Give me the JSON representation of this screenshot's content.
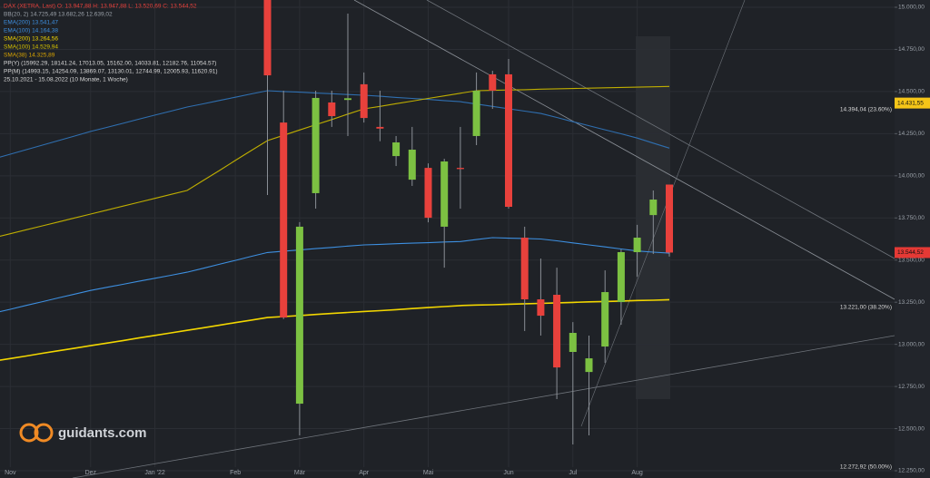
{
  "chart_data": {
    "type": "candlestick",
    "legend": [
      {
        "text": "DAX (XETRA, Last)  O: 13.947,88  H: 13.947,88  L: 13.520,69  C: 13.544,52",
        "color": "#e8413c"
      },
      {
        "text": "BB(20, 2)  14.725,49  13.682,26  12.639,02",
        "color": "#9aa0a8"
      },
      {
        "text": "EMA(200)  13.541,47",
        "color": "#3d8fe0"
      },
      {
        "text": "EMA(100)  14.164,38",
        "color": "#3d8fe0"
      },
      {
        "text": "SMA(200)  13.264,56",
        "color": "#f2d600"
      },
      {
        "text": "SMA(100)  14.529,94",
        "color": "#d6c200"
      },
      {
        "text": "SMA(38)  14.325,89",
        "color": "#d9a400"
      },
      {
        "text": "PP(Y)  (15992.29, 18141.24, 17013.05, 15162.00, 14033.81, 12182.76, 11054.57)",
        "color": "#d8d8d8"
      },
      {
        "text": "PP(M)  (14993.15, 14254.09, 13869.07, 13130.01, 12744.99, 12005.93, 11620.91)",
        "color": "#d8d8d8"
      },
      {
        "text": "25.10.2021 - 15.08.2022 (10 Monate, 1 Woche)",
        "color": "#d8d8d8"
      }
    ],
    "categories": [
      null,
      "Nov",
      null,
      null,
      null,
      null,
      "Dez",
      null,
      null,
      null,
      "Jan '22",
      null,
      null,
      null,
      null,
      "Feb",
      null,
      null,
      null,
      "Mär",
      null,
      null,
      null,
      "Apr",
      null,
      null,
      null,
      "Mai",
      null,
      null,
      null,
      null,
      "Jun",
      null,
      null,
      null,
      "Jul",
      null,
      null,
      null,
      "Aug",
      null,
      null
    ],
    "open": [
      null,
      null,
      null,
      null,
      null,
      null,
      null,
      null,
      null,
      null,
      null,
      null,
      null,
      null,
      null,
      null,
      null,
      15050,
      14316,
      12648,
      13897,
      14435,
      14450,
      14543,
      14290,
      14117,
      13977,
      14047,
      13698,
      14047,
      14236,
      14602,
      14602,
      13633,
      13267,
      13294,
      12955,
      12836,
      12987,
      13251,
      13547,
      13767,
      13947.88
    ],
    "high": [
      null,
      null,
      null,
      null,
      null,
      null,
      null,
      null,
      null,
      null,
      null,
      null,
      null,
      null,
      null,
      null,
      null,
      15100,
      14505,
      13725,
      14505,
      14505,
      14962,
      14613,
      14505,
      14236,
      14290,
      14074,
      14101,
      14290,
      14613,
      14623,
      14693,
      13698,
      13509,
      13455,
      13132,
      13052,
      13439,
      13563,
      13709,
      13913,
      13947.88
    ],
    "low": [
      null,
      null,
      null,
      null,
      null,
      null,
      null,
      null,
      null,
      null,
      null,
      null,
      null,
      null,
      null,
      null,
      null,
      13886,
      13150,
      12460,
      13805,
      14290,
      14236,
      14316,
      14205,
      14058,
      13940,
      13724,
      13455,
      13805,
      14182,
      14397,
      13805,
      13079,
      13052,
      12675,
      12406,
      12460,
      12890,
      13116,
      13401,
      13536,
      13520.69
    ],
    "close": [
      null,
      null,
      null,
      null,
      null,
      null,
      null,
      null,
      null,
      null,
      null,
      null,
      null,
      null,
      null,
      null,
      null,
      14596,
      13159,
      13698,
      14462,
      14354,
      14460,
      14343,
      14280,
      14198,
      14155,
      13751,
      14085,
      14040,
      14505,
      14505,
      13816,
      13267,
      13170,
      12863,
      13068,
      12917,
      13310,
      13547,
      13633,
      13859,
      13544.52
    ],
    "up_color": "#7cc142",
    "down_color": "#e8413c",
    "series": [
      {
        "name": "EMA(200)",
        "color": "#3d8fe0",
        "values": [
          13186,
          13208,
          13231,
          13253,
          13276,
          13298,
          13320,
          13338,
          13356,
          13374,
          13392,
          13410,
          13428,
          13451,
          13475,
          13498,
          13522,
          13545,
          13553,
          13560,
          13568,
          13575,
          13583,
          13590,
          13593,
          13597,
          13600,
          13603,
          13607,
          13610,
          13622,
          13633,
          13630,
          13628,
          13625,
          13614,
          13602,
          13590,
          13578,
          13566,
          13554,
          13547,
          13541
        ]
      },
      {
        "name": "SMA(200)",
        "color": "#f2d600",
        "values": [
          12901,
          12916,
          12931,
          12947,
          12962,
          12977,
          12992,
          13007,
          13022,
          13038,
          13053,
          13068,
          13083,
          13098,
          13113,
          13129,
          13144,
          13159,
          13165,
          13171,
          13177,
          13183,
          13189,
          13195,
          13200,
          13206,
          13212,
          13218,
          13224,
          13230,
          13233,
          13235,
          13238,
          13241,
          13243,
          13246,
          13249,
          13252,
          13254,
          13257,
          13260,
          13262,
          13265
        ]
      },
      {
        "name": "EMA(100)",
        "color": "#2f6fb0",
        "values": [
          14101,
          14128,
          14155,
          14182,
          14209,
          14236,
          14263,
          14287,
          14311,
          14336,
          14360,
          14384,
          14408,
          14427,
          14447,
          14466,
          14486,
          14505,
          14500,
          14496,
          14491,
          14487,
          14482,
          14478,
          14472,
          14465,
          14459,
          14453,
          14446,
          14440,
          14426,
          14412,
          14398,
          14384,
          14370,
          14346,
          14321,
          14297,
          14273,
          14249,
          14224,
          14194,
          14164
        ]
      },
      {
        "name": "SMA(100)",
        "color": "#bfae00",
        "values": [
          13633,
          13656,
          13680,
          13703,
          13726,
          13750,
          13773,
          13796,
          13820,
          13843,
          13866,
          13890,
          13913,
          13972,
          14031,
          14091,
          14150,
          14209,
          14240,
          14272,
          14303,
          14334,
          14366,
          14397,
          14412,
          14428,
          14443,
          14459,
          14474,
          14490,
          14505,
          14507,
          14509,
          14511,
          14514,
          14516,
          14518,
          14520,
          14522,
          14524,
          14526,
          14528,
          14530
        ]
      }
    ],
    "ylim": [
      12207,
      15043
    ],
    "yticks": [
      {
        "value": 12250,
        "label": "12.250,00"
      },
      {
        "value": 12500,
        "label": "12.500,00"
      },
      {
        "value": 12750,
        "label": "12.750,00"
      },
      {
        "value": 13000,
        "label": "13.000,00"
      },
      {
        "value": 13250,
        "label": "13.250,00"
      },
      {
        "value": 13500,
        "label": "13.500,00"
      },
      {
        "value": 13750,
        "label": "13.750,00"
      },
      {
        "value": 14000,
        "label": "14.000,00"
      },
      {
        "value": 14250,
        "label": "14.250,00"
      },
      {
        "value": 14500,
        "label": "14.500,00"
      },
      {
        "value": 14750,
        "label": "14.750,00"
      },
      {
        "value": 15000,
        "label": "15.000,00"
      }
    ],
    "grid": true,
    "price_labels": [
      {
        "value": 14431.55,
        "label": "14.431,55",
        "color": "#f5c518"
      },
      {
        "value": 13544.52,
        "label": "13.544,52",
        "color": "#e53935"
      }
    ],
    "annotations": [
      {
        "value": 14394.04,
        "label": "14.394,04 (23.60%)"
      },
      {
        "value": 13221.0,
        "label": "13.221,00 (38.20%)"
      },
      {
        "value": 12272.92,
        "label": "12.272,92 (50.00%)"
      }
    ],
    "logo": "guidants.com"
  }
}
